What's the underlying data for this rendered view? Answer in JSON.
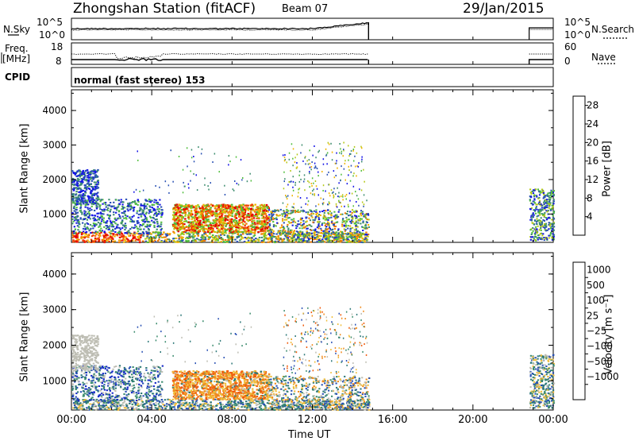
{
  "header": {
    "station_title": "Zhongshan Station (fitACF)",
    "beam": "Beam 07",
    "date": "29/Jan/2015"
  },
  "panels": {
    "nsky_label": "N.Sky",
    "nsky_ticks": [
      "10^5",
      "10^0"
    ],
    "nsearch_label": "N.Search",
    "nsearch_ticks": [
      "10^5",
      "10^0"
    ],
    "freq_label": "Freq.",
    "freq_unit": "[MHz]",
    "freq_ticks": [
      "18",
      "8"
    ],
    "nave_label": "Nave",
    "nave_ticks": [
      "60",
      "0"
    ],
    "cpid_label": "CPID",
    "cpid_text": "normal (fast stereo) 153"
  },
  "colors": {
    "power": [
      "#1414e6",
      "#2850b4",
      "#3c8c6e",
      "#50be3c",
      "#b4c814",
      "#f0b400",
      "#f07800",
      "#f03c00",
      "#e60000"
    ],
    "velocity": [
      "#e61414",
      "#f05a0a",
      "#f08c1e",
      "#f0be3c",
      "#bebeb4",
      "#3c8c6e",
      "#2d7878",
      "#2850b4",
      "#1428c8"
    ]
  },
  "chart_data": [
    {
      "type": "heatmap",
      "ylabel": "Slant Range [km]",
      "xlabel": "",
      "x_ticks": [],
      "y_ticks": [
        "1000",
        "2000",
        "3000",
        "4000"
      ],
      "ylim": [
        180,
        4600
      ],
      "xlim": [
        0,
        24
      ],
      "colorbar": {
        "label": "Power [dB]",
        "ticks": [
          "4",
          "8",
          "12",
          "16",
          "20",
          "24",
          "28"
        ],
        "range": [
          0,
          30
        ]
      },
      "scatter_regions": [
        {
          "t": [
            0.0,
            14.8
          ],
          "r": [
            180,
            500
          ],
          "value": "mixed"
        },
        {
          "t": [
            5.0,
            9.8
          ],
          "r": [
            500,
            1300
          ],
          "value": "high"
        },
        {
          "t": [
            0.0,
            1.2
          ],
          "r": [
            1300,
            2300
          ],
          "value": "low"
        },
        {
          "t": [
            22.8,
            24.0
          ],
          "r": [
            250,
            1800
          ],
          "value": "low"
        }
      ]
    },
    {
      "type": "heatmap",
      "ylabel": "Slant Range [km]",
      "xlabel": "Time UT",
      "x_ticks": [
        "00:00",
        "04:00",
        "08:00",
        "12:00",
        "16:00",
        "20:00",
        "00:00"
      ],
      "y_ticks": [
        "1000",
        "2000",
        "3000",
        "4000"
      ],
      "ylim": [
        180,
        4600
      ],
      "xlim": [
        0,
        24
      ],
      "colorbar": {
        "label": "Velocity [m s⁻¹]",
        "ticks": [
          "1000",
          "500",
          "100",
          "25",
          "−25",
          "−100",
          "−500",
          "−1000"
        ]
      },
      "scatter_regions": [
        {
          "t": [
            0.0,
            14.8
          ],
          "r": [
            180,
            500
          ],
          "value": "mixed"
        },
        {
          "t": [
            5.0,
            9.8
          ],
          "r": [
            500,
            1300
          ],
          "value": "negative"
        },
        {
          "t": [
            0.0,
            1.2
          ],
          "r": [
            1300,
            2300
          ],
          "value": "near-zero"
        },
        {
          "t": [
            22.8,
            24.0
          ],
          "r": [
            250,
            1800
          ],
          "value": "mixed"
        }
      ]
    }
  ]
}
